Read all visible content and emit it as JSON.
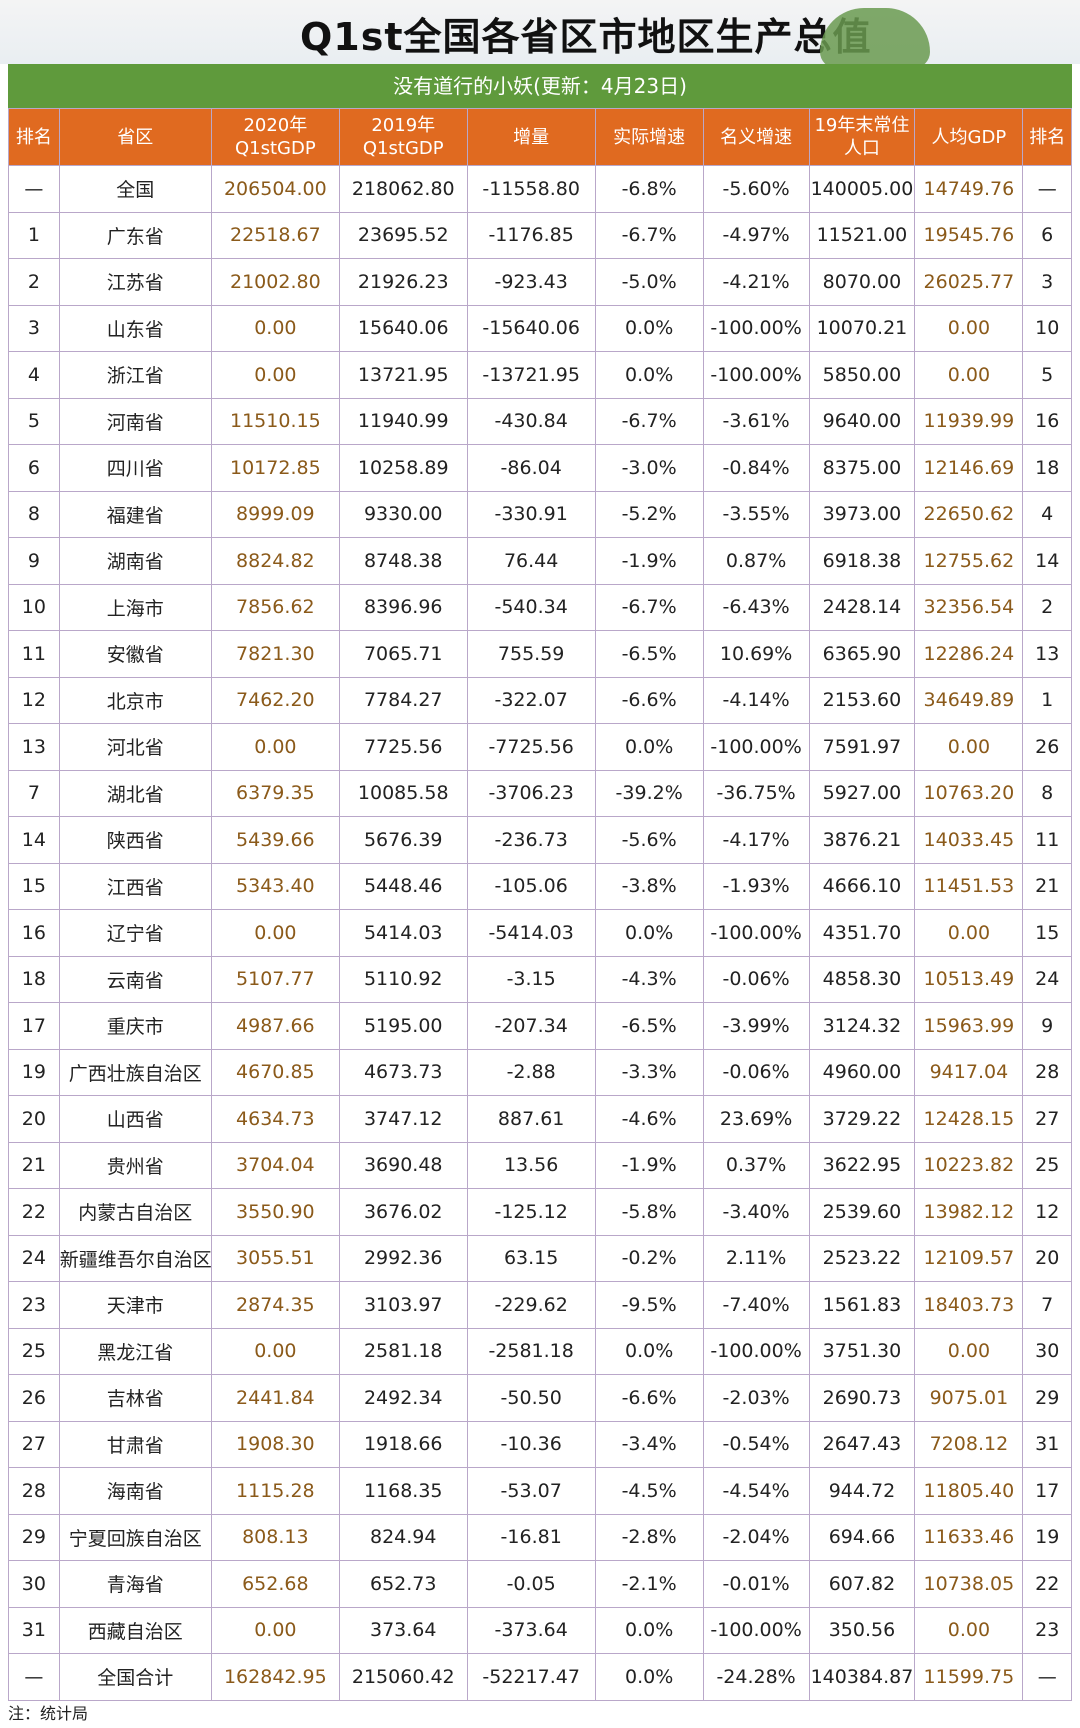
{
  "title": "Q1st全国各省区市地区生产总值",
  "subtitle": "没有道行的小妖(更新：4月23日)",
  "headers": [
    [
      "排名"
    ],
    [
      "省区"
    ],
    [
      "2020年",
      "Q1stGDP"
    ],
    [
      "2019年",
      "Q1stGDP"
    ],
    [
      "增量"
    ],
    [
      "实际增速"
    ],
    [
      "名义增速"
    ],
    [
      "19年末常住",
      "人口"
    ],
    [
      "人均GDP"
    ],
    [
      "排名"
    ]
  ],
  "rows": [
    [
      "—",
      "全国",
      "206504.00",
      "218062.80",
      "-11558.80",
      "-6.8%",
      "-5.60%",
      "140005.00",
      "14749.76",
      "—"
    ],
    [
      "1",
      "广东省",
      "22518.67",
      "23695.52",
      "-1176.85",
      "-6.7%",
      "-4.97%",
      "11521.00",
      "19545.76",
      "6"
    ],
    [
      "2",
      "江苏省",
      "21002.80",
      "21926.23",
      "-923.43",
      "-5.0%",
      "-4.21%",
      "8070.00",
      "26025.77",
      "3"
    ],
    [
      "3",
      "山东省",
      "0.00",
      "15640.06",
      "-15640.06",
      "0.0%",
      "-100.00%",
      "10070.21",
      "0.00",
      "10"
    ],
    [
      "4",
      "浙江省",
      "0.00",
      "13721.95",
      "-13721.95",
      "0.0%",
      "-100.00%",
      "5850.00",
      "0.00",
      "5"
    ],
    [
      "5",
      "河南省",
      "11510.15",
      "11940.99",
      "-430.84",
      "-6.7%",
      "-3.61%",
      "9640.00",
      "11939.99",
      "16"
    ],
    [
      "6",
      "四川省",
      "10172.85",
      "10258.89",
      "-86.04",
      "-3.0%",
      "-0.84%",
      "8375.00",
      "12146.69",
      "18"
    ],
    [
      "8",
      "福建省",
      "8999.09",
      "9330.00",
      "-330.91",
      "-5.2%",
      "-3.55%",
      "3973.00",
      "22650.62",
      "4"
    ],
    [
      "9",
      "湖南省",
      "8824.82",
      "8748.38",
      "76.44",
      "-1.9%",
      "0.87%",
      "6918.38",
      "12755.62",
      "14"
    ],
    [
      "10",
      "上海市",
      "7856.62",
      "8396.96",
      "-540.34",
      "-6.7%",
      "-6.43%",
      "2428.14",
      "32356.54",
      "2"
    ],
    [
      "11",
      "安徽省",
      "7821.30",
      "7065.71",
      "755.59",
      "-6.5%",
      "10.69%",
      "6365.90",
      "12286.24",
      "13"
    ],
    [
      "12",
      "北京市",
      "7462.20",
      "7784.27",
      "-322.07",
      "-6.6%",
      "-4.14%",
      "2153.60",
      "34649.89",
      "1"
    ],
    [
      "13",
      "河北省",
      "0.00",
      "7725.56",
      "-7725.56",
      "0.0%",
      "-100.00%",
      "7591.97",
      "0.00",
      "26"
    ],
    [
      "7",
      "湖北省",
      "6379.35",
      "10085.58",
      "-3706.23",
      "-39.2%",
      "-36.75%",
      "5927.00",
      "10763.20",
      "8"
    ],
    [
      "14",
      "陕西省",
      "5439.66",
      "5676.39",
      "-236.73",
      "-5.6%",
      "-4.17%",
      "3876.21",
      "14033.45",
      "11"
    ],
    [
      "15",
      "江西省",
      "5343.40",
      "5448.46",
      "-105.06",
      "-3.8%",
      "-1.93%",
      "4666.10",
      "11451.53",
      "21"
    ],
    [
      "16",
      "辽宁省",
      "0.00",
      "5414.03",
      "-5414.03",
      "0.0%",
      "-100.00%",
      "4351.70",
      "0.00",
      "15"
    ],
    [
      "18",
      "云南省",
      "5107.77",
      "5110.92",
      "-3.15",
      "-4.3%",
      "-0.06%",
      "4858.30",
      "10513.49",
      "24"
    ],
    [
      "17",
      "重庆市",
      "4987.66",
      "5195.00",
      "-207.34",
      "-6.5%",
      "-3.99%",
      "3124.32",
      "15963.99",
      "9"
    ],
    [
      "19",
      "广西壮族自治区",
      "4670.85",
      "4673.73",
      "-2.88",
      "-3.3%",
      "-0.06%",
      "4960.00",
      "9417.04",
      "28"
    ],
    [
      "20",
      "山西省",
      "4634.73",
      "3747.12",
      "887.61",
      "-4.6%",
      "23.69%",
      "3729.22",
      "12428.15",
      "27"
    ],
    [
      "21",
      "贵州省",
      "3704.04",
      "3690.48",
      "13.56",
      "-1.9%",
      "0.37%",
      "3622.95",
      "10223.82",
      "25"
    ],
    [
      "22",
      "内蒙古自治区",
      "3550.90",
      "3676.02",
      "-125.12",
      "-5.8%",
      "-3.40%",
      "2539.60",
      "13982.12",
      "12"
    ],
    [
      "24",
      "新疆维吾尔自治区",
      "3055.51",
      "2992.36",
      "63.15",
      "-0.2%",
      "2.11%",
      "2523.22",
      "12109.57",
      "20"
    ],
    [
      "23",
      "天津市",
      "2874.35",
      "3103.97",
      "-229.62",
      "-9.5%",
      "-7.40%",
      "1561.83",
      "18403.73",
      "7"
    ],
    [
      "25",
      "黑龙江省",
      "0.00",
      "2581.18",
      "-2581.18",
      "0.0%",
      "-100.00%",
      "3751.30",
      "0.00",
      "30"
    ],
    [
      "26",
      "吉林省",
      "2441.84",
      "2492.34",
      "-50.50",
      "-6.6%",
      "-2.03%",
      "2690.73",
      "9075.01",
      "29"
    ],
    [
      "27",
      "甘肃省",
      "1908.30",
      "1918.66",
      "-10.36",
      "-3.4%",
      "-0.54%",
      "2647.43",
      "7208.12",
      "31"
    ],
    [
      "28",
      "海南省",
      "1115.28",
      "1168.35",
      "-53.07",
      "-4.5%",
      "-4.54%",
      "944.72",
      "11805.40",
      "17"
    ],
    [
      "29",
      "宁夏回族自治区",
      "808.13",
      "824.94",
      "-16.81",
      "-2.8%",
      "-2.04%",
      "694.66",
      "11633.46",
      "19"
    ],
    [
      "30",
      "青海省",
      "652.68",
      "652.73",
      "-0.05",
      "-2.1%",
      "-0.01%",
      "607.82",
      "10738.05",
      "22"
    ],
    [
      "31",
      "西藏自治区",
      "0.00",
      "373.64",
      "-373.64",
      "0.0%",
      "-100.00%",
      "350.56",
      "0.00",
      "23"
    ],
    [
      "—",
      "全国合计",
      "162842.95",
      "215060.42",
      "-52217.47",
      "0.0%",
      "-24.28%",
      "140384.87",
      "11599.75",
      "—"
    ]
  ],
  "note": "注：统计局",
  "colors": {
    "header_bg": "#e06a20",
    "subtitle_bg": "#5f9a3c",
    "highlight_text": "#8b5a1a",
    "border": "#b9a7c9"
  }
}
